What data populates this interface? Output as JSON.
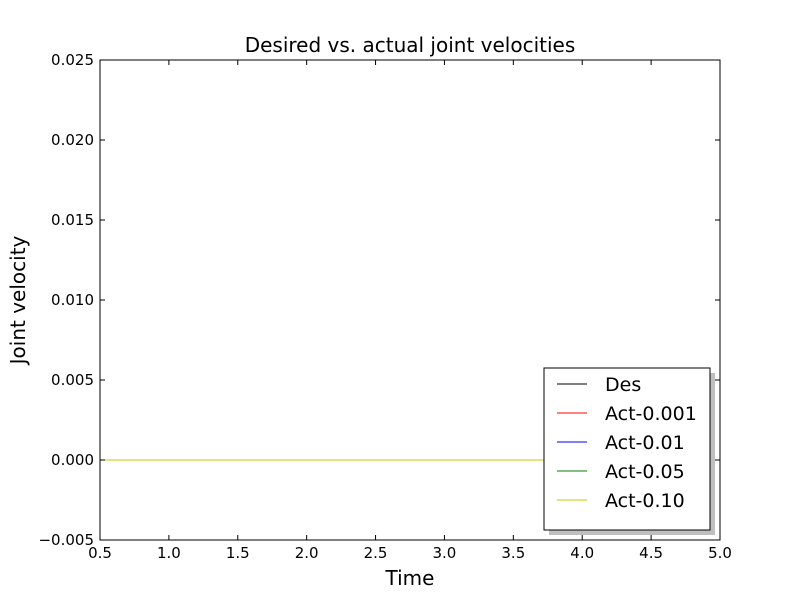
{
  "chart_data": {
    "type": "line",
    "title": "Desired vs. actual joint velocities",
    "xlabel": "Time",
    "ylabel": "Joint velocity",
    "xlim": [
      0.5,
      5.0
    ],
    "ylim": [
      -0.005,
      0.025
    ],
    "xticks": [
      "0.5",
      "1.0",
      "1.5",
      "2.0",
      "2.5",
      "3.0",
      "3.5",
      "4.0",
      "4.5",
      "5.0"
    ],
    "yticks": [
      "−0.005",
      "0.000",
      "0.005",
      "0.010",
      "0.015",
      "0.020",
      "0.025"
    ],
    "grid": false,
    "legend_position": "lower-right",
    "x": [
      0.5,
      5.0
    ],
    "series": [
      {
        "name": "Des",
        "color": "#000000",
        "values": [
          0.0,
          0.0
        ]
      },
      {
        "name": "Act-0.001",
        "color": "#ff0000",
        "values": [
          0.0,
          0.0
        ]
      },
      {
        "name": "Act-0.01",
        "color": "#0000ff",
        "values": [
          0.0,
          0.0
        ]
      },
      {
        "name": "Act-0.05",
        "color": "#008000",
        "values": [
          0.0,
          0.0
        ]
      },
      {
        "name": "Act-0.10",
        "color": "#c8c800",
        "values": [
          0.0,
          0.0
        ]
      }
    ]
  }
}
